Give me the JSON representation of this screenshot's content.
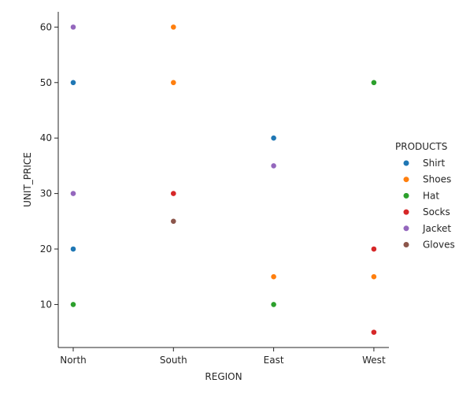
{
  "chart_data": {
    "type": "scatter",
    "xlabel": "REGION",
    "ylabel": "UNIT_PRICE",
    "categories": [
      "North",
      "South",
      "East",
      "West"
    ],
    "ylim": [
      2.25,
      62.75
    ],
    "yticks": [
      10,
      20,
      30,
      40,
      50,
      60
    ],
    "grid": false,
    "legend": {
      "title": "PRODUCTS",
      "placement": "right"
    },
    "series": [
      {
        "name": "Shirt",
        "color": "#1f77b4",
        "points": [
          [
            "North",
            50
          ],
          [
            "North",
            20
          ],
          [
            "East",
            40
          ]
        ]
      },
      {
        "name": "Shoes",
        "color": "#ff7f0e",
        "points": [
          [
            "South",
            60
          ],
          [
            "South",
            50
          ],
          [
            "East",
            15
          ],
          [
            "West",
            15
          ]
        ]
      },
      {
        "name": "Hat",
        "color": "#2ca02c",
        "points": [
          [
            "North",
            10
          ],
          [
            "East",
            10
          ],
          [
            "West",
            50
          ]
        ]
      },
      {
        "name": "Socks",
        "color": "#d62728",
        "points": [
          [
            "South",
            30
          ],
          [
            "West",
            20
          ],
          [
            "West",
            5
          ]
        ]
      },
      {
        "name": "Jacket",
        "color": "#9467bd",
        "points": [
          [
            "North",
            60
          ],
          [
            "North",
            30
          ],
          [
            "East",
            35
          ]
        ]
      },
      {
        "name": "Gloves",
        "color": "#8c564b",
        "points": [
          [
            "South",
            25
          ]
        ]
      }
    ]
  }
}
